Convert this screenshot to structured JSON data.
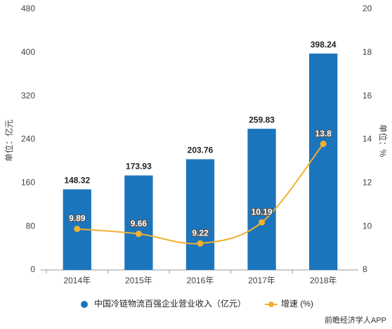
{
  "chart_data": {
    "type": "combo",
    "categories": [
      "2014年",
      "2015年",
      "2016年",
      "2017年",
      "2018年"
    ],
    "series": [
      {
        "name": "中国冷链物流百强企业营业收入（亿元）",
        "type": "bar",
        "color": "#1b75bc",
        "values": [
          148.32,
          173.93,
          203.76,
          259.83,
          398.24
        ]
      },
      {
        "name": "增速 (%)",
        "type": "line",
        "axis": "y2",
        "color": "#f0b12f",
        "values": [
          9.89,
          9.66,
          9.22,
          10.19,
          13.8
        ]
      }
    ],
    "ylabel": "单位：亿元",
    "y2label": "单位：%",
    "ylim": [
      0,
      480
    ],
    "yticks": [
      0,
      80,
      160,
      240,
      320,
      400,
      480
    ],
    "y2lim": [
      8,
      20
    ],
    "y2ticks": [
      8,
      10,
      12,
      14,
      16,
      18,
      20
    ],
    "grid": false,
    "legend": "bottom",
    "footer": "前瞻经济学人APP"
  }
}
